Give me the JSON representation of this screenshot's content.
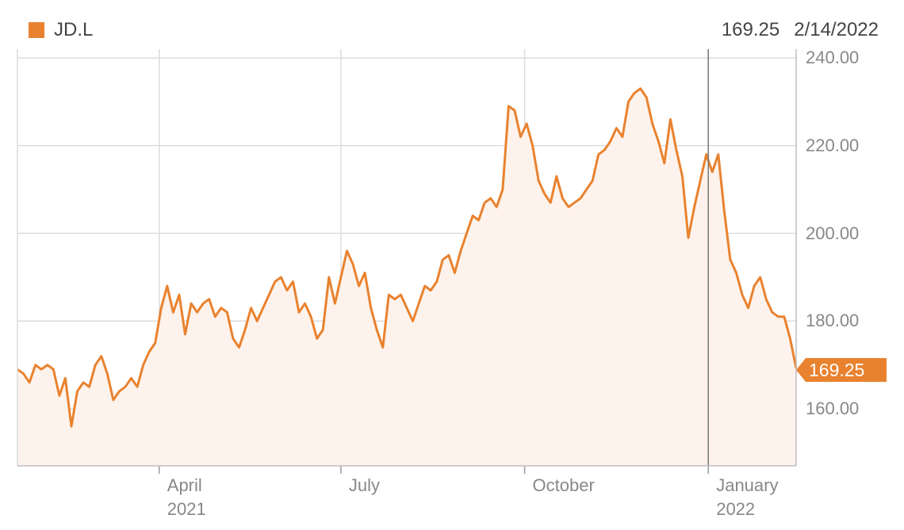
{
  "colors": {
    "series": "#e9822f",
    "area": "#fdf3ec",
    "grid": "#dcdcdc",
    "crosshair": "#777777"
  },
  "legend": {
    "label": "JD.L"
  },
  "readout": {
    "value": "169.25",
    "date": "2/14/2022"
  },
  "last_value_label": "169.25",
  "chart_data": {
    "type": "area",
    "title": "",
    "xlabel": "",
    "ylabel": "",
    "ylim": [
      147,
      242
    ],
    "xlim": [
      "2021-01-20",
      "2022-02-14"
    ],
    "yticks": [
      {
        "value": 240,
        "label": "240.00"
      },
      {
        "value": 220,
        "label": "220.00"
      },
      {
        "value": 200,
        "label": "200.00"
      },
      {
        "value": 180,
        "label": "180.00"
      },
      {
        "value": 160,
        "label": "160.00"
      }
    ],
    "xticks": [
      {
        "date": "2021-04-01",
        "label": "April",
        "sublabel": "2021"
      },
      {
        "date": "2021-07-01",
        "label": "July",
        "sublabel": ""
      },
      {
        "date": "2021-10-01",
        "label": "October",
        "sublabel": ""
      },
      {
        "date": "2022-01-01",
        "label": "January",
        "sublabel": "2022"
      }
    ],
    "grid": true,
    "legend_position": "top-left",
    "crosshair_date": "2022-01-01",
    "series": [
      {
        "name": "JD.L",
        "points": [
          [
            "2021-01-20",
            169
          ],
          [
            "2021-01-23",
            168
          ],
          [
            "2021-01-26",
            166
          ],
          [
            "2021-01-29",
            170
          ],
          [
            "2021-02-01",
            169
          ],
          [
            "2021-02-04",
            170
          ],
          [
            "2021-02-07",
            169
          ],
          [
            "2021-02-10",
            163
          ],
          [
            "2021-02-13",
            167
          ],
          [
            "2021-02-16",
            156
          ],
          [
            "2021-02-19",
            164
          ],
          [
            "2021-02-22",
            166
          ],
          [
            "2021-02-25",
            165
          ],
          [
            "2021-02-28",
            170
          ],
          [
            "2021-03-03",
            172
          ],
          [
            "2021-03-06",
            168
          ],
          [
            "2021-03-09",
            162
          ],
          [
            "2021-03-12",
            164
          ],
          [
            "2021-03-15",
            165
          ],
          [
            "2021-03-18",
            167
          ],
          [
            "2021-03-21",
            165
          ],
          [
            "2021-03-24",
            170
          ],
          [
            "2021-03-27",
            173
          ],
          [
            "2021-03-30",
            175
          ],
          [
            "2021-04-02",
            183
          ],
          [
            "2021-04-05",
            188
          ],
          [
            "2021-04-08",
            182
          ],
          [
            "2021-04-11",
            186
          ],
          [
            "2021-04-14",
            177
          ],
          [
            "2021-04-17",
            184
          ],
          [
            "2021-04-20",
            182
          ],
          [
            "2021-04-23",
            184
          ],
          [
            "2021-04-26",
            185
          ],
          [
            "2021-04-29",
            181
          ],
          [
            "2021-05-02",
            183
          ],
          [
            "2021-05-05",
            182
          ],
          [
            "2021-05-08",
            176
          ],
          [
            "2021-05-11",
            174
          ],
          [
            "2021-05-14",
            178
          ],
          [
            "2021-05-17",
            183
          ],
          [
            "2021-05-20",
            180
          ],
          [
            "2021-05-23",
            183
          ],
          [
            "2021-05-26",
            186
          ],
          [
            "2021-05-29",
            189
          ],
          [
            "2021-06-01",
            190
          ],
          [
            "2021-06-04",
            187
          ],
          [
            "2021-06-07",
            189
          ],
          [
            "2021-06-10",
            182
          ],
          [
            "2021-06-13",
            184
          ],
          [
            "2021-06-16",
            181
          ],
          [
            "2021-06-19",
            176
          ],
          [
            "2021-06-22",
            178
          ],
          [
            "2021-06-25",
            190
          ],
          [
            "2021-06-28",
            184
          ],
          [
            "2021-07-01",
            190
          ],
          [
            "2021-07-04",
            196
          ],
          [
            "2021-07-07",
            193
          ],
          [
            "2021-07-10",
            188
          ],
          [
            "2021-07-13",
            191
          ],
          [
            "2021-07-16",
            183
          ],
          [
            "2021-07-19",
            178
          ],
          [
            "2021-07-22",
            174
          ],
          [
            "2021-07-25",
            186
          ],
          [
            "2021-07-28",
            185
          ],
          [
            "2021-07-31",
            186
          ],
          [
            "2021-08-03",
            183
          ],
          [
            "2021-08-06",
            180
          ],
          [
            "2021-08-09",
            184
          ],
          [
            "2021-08-12",
            188
          ],
          [
            "2021-08-15",
            187
          ],
          [
            "2021-08-18",
            189
          ],
          [
            "2021-08-21",
            194
          ],
          [
            "2021-08-24",
            195
          ],
          [
            "2021-08-27",
            191
          ],
          [
            "2021-08-30",
            196
          ],
          [
            "2021-09-02",
            200
          ],
          [
            "2021-09-05",
            204
          ],
          [
            "2021-09-08",
            203
          ],
          [
            "2021-09-11",
            207
          ],
          [
            "2021-09-14",
            208
          ],
          [
            "2021-09-17",
            206
          ],
          [
            "2021-09-20",
            210
          ],
          [
            "2021-09-23",
            229
          ],
          [
            "2021-09-26",
            228
          ],
          [
            "2021-09-29",
            222
          ],
          [
            "2021-10-02",
            225
          ],
          [
            "2021-10-05",
            220
          ],
          [
            "2021-10-08",
            212
          ],
          [
            "2021-10-11",
            209
          ],
          [
            "2021-10-14",
            207
          ],
          [
            "2021-10-17",
            213
          ],
          [
            "2021-10-20",
            208
          ],
          [
            "2021-10-23",
            206
          ],
          [
            "2021-10-26",
            207
          ],
          [
            "2021-10-29",
            208
          ],
          [
            "2021-11-01",
            210
          ],
          [
            "2021-11-04",
            212
          ],
          [
            "2021-11-07",
            218
          ],
          [
            "2021-11-10",
            219
          ],
          [
            "2021-11-13",
            221
          ],
          [
            "2021-11-16",
            224
          ],
          [
            "2021-11-19",
            222
          ],
          [
            "2021-11-22",
            230
          ],
          [
            "2021-11-25",
            232
          ],
          [
            "2021-11-28",
            233
          ],
          [
            "2021-12-01",
            231
          ],
          [
            "2021-12-04",
            225
          ],
          [
            "2021-12-07",
            221
          ],
          [
            "2021-12-10",
            216
          ],
          [
            "2021-12-13",
            226
          ],
          [
            "2021-12-16",
            219
          ],
          [
            "2021-12-19",
            213
          ],
          [
            "2021-12-22",
            199
          ],
          [
            "2021-12-25",
            206
          ],
          [
            "2021-12-28",
            212
          ],
          [
            "2021-12-31",
            218
          ],
          [
            "2022-01-03",
            214
          ],
          [
            "2022-01-06",
            218
          ],
          [
            "2022-01-09",
            205
          ],
          [
            "2022-01-12",
            194
          ],
          [
            "2022-01-15",
            191
          ],
          [
            "2022-01-18",
            186
          ],
          [
            "2022-01-21",
            183
          ],
          [
            "2022-01-24",
            188
          ],
          [
            "2022-01-27",
            190
          ],
          [
            "2022-01-30",
            185
          ],
          [
            "2022-02-02",
            182
          ],
          [
            "2022-02-05",
            181
          ],
          [
            "2022-02-08",
            181
          ],
          [
            "2022-02-11",
            176
          ],
          [
            "2022-02-14",
            169.25
          ]
        ]
      }
    ]
  }
}
